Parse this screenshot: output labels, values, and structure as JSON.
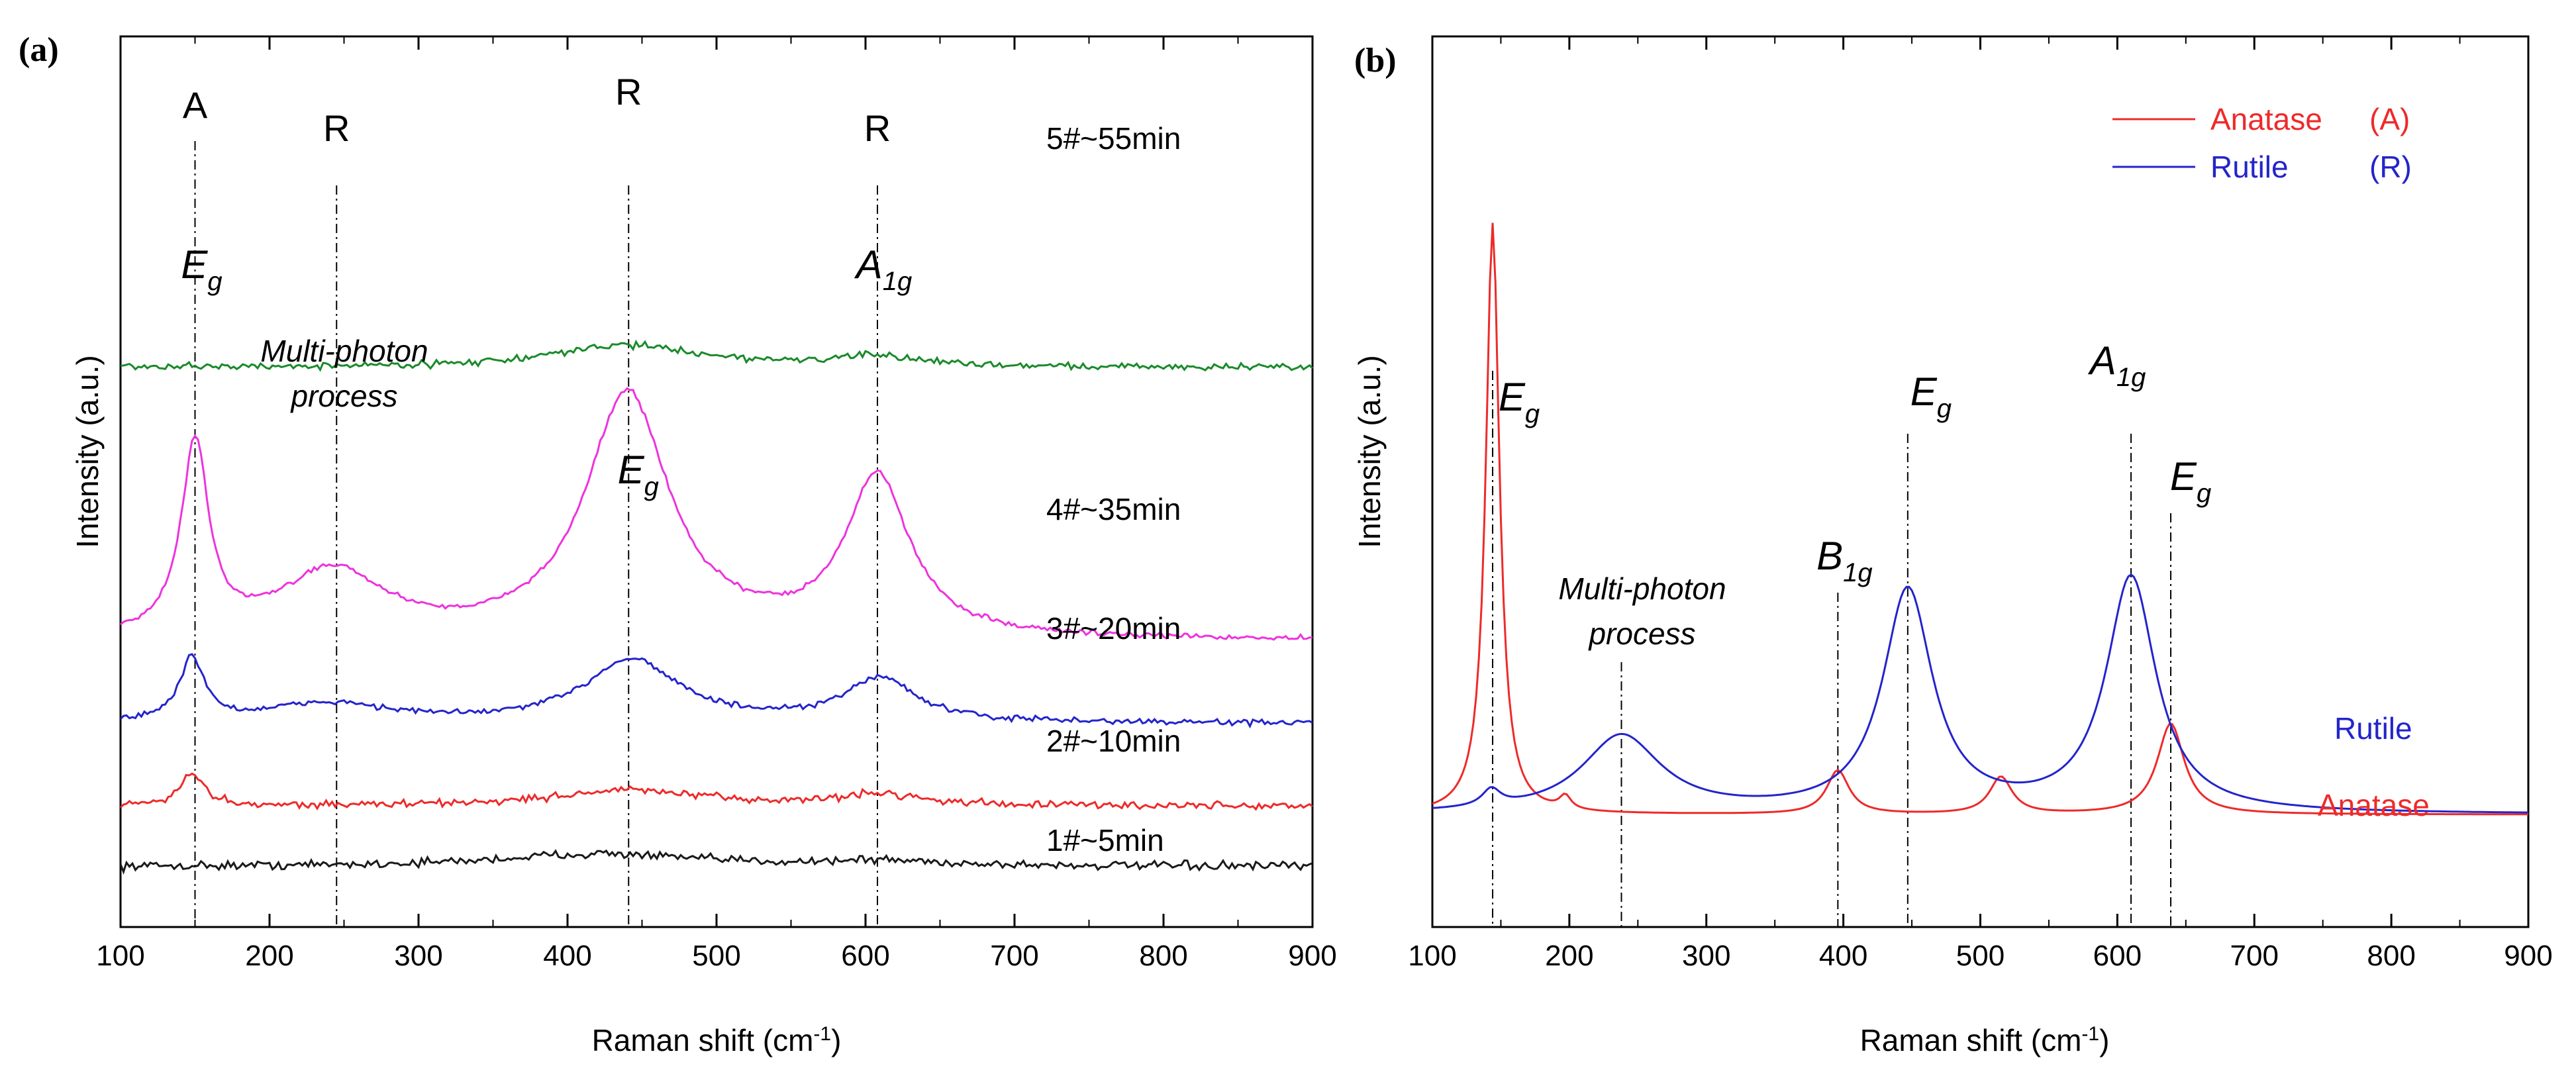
{
  "colors": {
    "axis": "#000000",
    "guide": "#000000",
    "black": "#1a1a1a",
    "red": "#ee2a2a",
    "blue": "#2424cc",
    "magenta": "#ee33dd",
    "green": "#1a8a2a"
  },
  "chart_data": [
    {
      "panel_label": "(a)",
      "type": "line",
      "title": "",
      "xlabel": "Raman shift (cm⁻¹)",
      "ylabel": "Intensity (a.u.)",
      "xlim": [
        100,
        900
      ],
      "ylim": [
        0,
        10
      ],
      "xticks": [
        100,
        200,
        300,
        400,
        500,
        600,
        700,
        800,
        900
      ],
      "tick_labels": [
        "100",
        "200",
        "300",
        "400",
        "500",
        "600",
        "700",
        "800",
        "900"
      ],
      "y_ticks_shown": false,
      "series": [
        {
          "name": "1#~5min",
          "color": "black",
          "baseline": 0.45,
          "noise": 0.1,
          "peaks": [
            {
              "x": 420,
              "h": 0.2,
              "w": 80
            },
            {
              "x": 610,
              "h": 0.08,
              "w": 50
            }
          ]
        },
        {
          "name": "2#~10min",
          "color": "red",
          "baseline": 1.4,
          "noise": 0.09,
          "peaks": [
            {
              "x": 148,
              "h": 0.5,
              "w": 10
            },
            {
              "x": 440,
              "h": 0.25,
              "w": 60
            },
            {
              "x": 610,
              "h": 0.18,
              "w": 35
            }
          ]
        },
        {
          "name": "3#~20min",
          "color": "blue",
          "baseline": 2.7,
          "noise": 0.07,
          "peaks": [
            {
              "x": 148,
              "h": 1.0,
              "w": 10
            },
            {
              "x": 240,
              "h": 0.3,
              "w": 50
            },
            {
              "x": 443,
              "h": 1.0,
              "w": 38
            },
            {
              "x": 610,
              "h": 0.7,
              "w": 28
            }
          ]
        },
        {
          "name": "4#~35min",
          "color": "magenta",
          "baseline": 4.0,
          "noise": 0.06,
          "peaks": [
            {
              "x": 150,
              "h": 3.0,
              "w": 11
            },
            {
              "x": 242,
              "h": 1.05,
              "w": 42
            },
            {
              "x": 440,
              "h": 3.85,
              "w": 34
            },
            {
              "x": 608,
              "h": 2.5,
              "w": 26
            }
          ]
        },
        {
          "name": "5#~55min",
          "color": "green",
          "baseline": 8.3,
          "noise": 0.08,
          "peaks": [
            {
              "x": 440,
              "h": 0.35,
              "w": 60
            },
            {
              "x": 608,
              "h": 0.15,
              "w": 40
            }
          ]
        }
      ],
      "phase_labels": [
        {
          "text": "A",
          "x": 150
        },
        {
          "text": "R",
          "x": 245
        },
        {
          "text": "R",
          "x": 441
        },
        {
          "text": "R",
          "x": 608
        }
      ],
      "mode_labels": [
        {
          "main": "E",
          "sub": "g",
          "x": 150
        },
        {
          "main": "A",
          "sub": "1g",
          "x": 608
        },
        {
          "main": "E",
          "sub": "g",
          "x": 443
        }
      ],
      "annotation": [
        "Multi-photon",
        "process"
      ],
      "guide_lines_x": [
        150,
        245,
        441,
        608
      ]
    },
    {
      "panel_label": "(b)",
      "type": "line",
      "title": "",
      "xlabel": "Raman shift (cm⁻¹)",
      "ylabel": "Intensity (a.u.)",
      "xlim": [
        100,
        900
      ],
      "ylim": [
        0,
        10
      ],
      "xticks": [
        100,
        200,
        300,
        400,
        500,
        600,
        700,
        800,
        900
      ],
      "tick_labels": [
        "100",
        "200",
        "300",
        "400",
        "500",
        "600",
        "700",
        "800",
        "900"
      ],
      "y_ticks_shown": false,
      "legend_position": "top-right",
      "legend": [
        {
          "name": "Anatase",
          "tag": "(A)",
          "color": "red"
        },
        {
          "name": "Rutile",
          "tag": "(R)",
          "color": "blue"
        }
      ],
      "series": [
        {
          "name": "Anatase",
          "color": "red",
          "baseline": 1.2,
          "peaks": [
            {
              "x": 144,
              "h": 8.8,
              "w": 6
            },
            {
              "x": 197,
              "h": 0.2,
              "w": 5
            },
            {
              "x": 396,
              "h": 0.65,
              "w": 10
            },
            {
              "x": 515,
              "h": 0.55,
              "w": 10
            },
            {
              "x": 639,
              "h": 1.35,
              "w": 12
            }
          ]
        },
        {
          "name": "Rutile",
          "color": "blue",
          "baseline": 1.2,
          "peaks": [
            {
              "x": 143,
              "h": 0.25,
              "w": 8
            },
            {
              "x": 238,
              "h": 1.15,
              "w": 35
            },
            {
              "x": 447,
              "h": 3.3,
              "w": 22
            },
            {
              "x": 610,
              "h": 3.5,
              "w": 22
            }
          ]
        }
      ],
      "curve_labels": [
        {
          "text": "Rutile",
          "color": "blue"
        },
        {
          "text": "Anatase",
          "color": "red"
        }
      ],
      "mode_labels": [
        {
          "main": "E",
          "sub": "g",
          "x": 144
        },
        {
          "main": "B",
          "sub": "1g",
          "x": 396
        },
        {
          "main": "E",
          "sub": "g",
          "x": 447
        },
        {
          "main": "A",
          "sub": "1g",
          "x": 610
        },
        {
          "main": "E",
          "sub": "g",
          "x": 639
        }
      ],
      "annotation": [
        "Multi-photon",
        "process"
      ],
      "guide_lines_x": [
        144,
        238,
        396,
        447,
        610,
        639
      ]
    }
  ]
}
